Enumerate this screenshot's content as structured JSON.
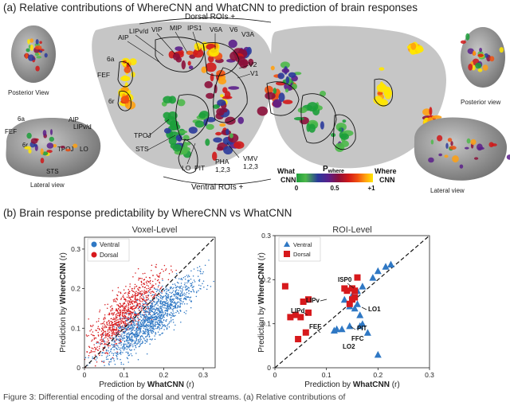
{
  "panel_a": {
    "title": "(a) Relative contributions of WhereCNN and WhatCNN to prediction of brain responses",
    "dorsal_label": "Dorsal ROIs +",
    "ventral_label": "Ventral ROIs +",
    "views": {
      "posterior_left": "Posterior View",
      "posterior_right": "Posterior view",
      "lateral_left": "Lateral view",
      "lateral_right": "Lateral view"
    },
    "roi_labels": [
      "LIPv/d",
      "VIP",
      "MIP",
      "IPS1",
      "V6A",
      "V6",
      "V3A",
      "AIP",
      "V2",
      "V1",
      "6a",
      "FEF",
      "6r",
      "TPOJ",
      "STS",
      "LO",
      "PIT",
      "PHA",
      "1,2,3",
      "VMV",
      "1,2,3"
    ],
    "lateral_labels": [
      "6a",
      "AIP",
      "LIPv/d",
      "FEF",
      "6r",
      "TPOJ",
      "LO",
      "STS"
    ],
    "colorbar": {
      "left_label": "What\nCNN",
      "right_label": "Where\nCNN",
      "title": "P",
      "subscript": "where",
      "ticks": [
        "0",
        "0.5",
        "+1"
      ],
      "colors": [
        "#1c9e3a",
        "#4db84a",
        "#2a3a9a",
        "#5a1e8a",
        "#8b0f3a",
        "#d01818",
        "#f05010",
        "#ffa010",
        "#ffe600"
      ]
    }
  },
  "panel_b": {
    "title": "(b) Brain response predictability by WhereCNN vs WhatCNN",
    "voxel": {
      "title": "Voxel-Level",
      "xlabel_prefix": "Prediction by ",
      "xlabel_bold": "WhatCNN",
      "xlabel_suffix": " (r)",
      "ylabel_prefix": "Prediction by ",
      "ylabel_bold": "WhereCNN",
      "ylabel_suffix": " (r)",
      "legend": [
        "Ventral",
        "Dorsal"
      ]
    },
    "roi": {
      "title": "ROI-Level",
      "xlabel_prefix": "Prediction by ",
      "xlabel_bold": "WhatCNN",
      "xlabel_suffix": " (r)",
      "ylabel_prefix": "Prediction by ",
      "ylabel_bold": "WhereCNN",
      "ylabel_suffix": " (r)",
      "legend": [
        "Ventral",
        "Dorsal"
      ],
      "annotations": [
        "ISP0",
        "LIPv",
        "LIPd",
        "FEF",
        "LO1",
        "PIT",
        "FFC",
        "LO2"
      ]
    }
  },
  "caption": "Figure 3: Differential encoding of the dorsal and ventral streams. (a) Relative contributions of",
  "chart_data": [
    {
      "type": "scatter",
      "title": "Voxel-Level",
      "xlabel": "Prediction by WhatCNN (r)",
      "ylabel": "Prediction by WhereCNN (r)",
      "xlim": [
        0,
        0.33
      ],
      "ylim": [
        0,
        0.33
      ],
      "xticks": [
        "0",
        "0.1",
        "0.2",
        "0.3"
      ],
      "yticks": [
        "0",
        "0.1",
        "0.2",
        "0.3"
      ],
      "legend_position": "top-left",
      "reference_line": "y = x",
      "series": [
        {
          "name": "Ventral",
          "color": "#2f78c4",
          "cloud": {
            "x_mean": 0.165,
            "y_mean": 0.12,
            "x_sd": 0.055,
            "y_sd": 0.05,
            "n": 1400
          }
        },
        {
          "name": "Dorsal",
          "color": "#d7191c",
          "cloud": {
            "x_mean": 0.1,
            "y_mean": 0.135,
            "x_sd": 0.045,
            "y_sd": 0.05,
            "n": 900
          }
        }
      ]
    },
    {
      "type": "scatter",
      "title": "ROI-Level",
      "xlabel": "Prediction by WhatCNN (r)",
      "ylabel": "Prediction by WhereCNN (r)",
      "xlim": [
        0,
        0.3
      ],
      "ylim": [
        0,
        0.3
      ],
      "xticks": [
        "0",
        "0.1",
        "0.2",
        "0.3"
      ],
      "yticks": [
        "0",
        "0.1",
        "0.2",
        "0.3"
      ],
      "legend_position": "top-left",
      "reference_line": "y = x",
      "series": [
        {
          "name": "Ventral",
          "color": "#2f78c4",
          "marker": "triangle",
          "points": [
            [
              0.225,
              0.235
            ],
            [
              0.215,
              0.23
            ],
            [
              0.2,
              0.22
            ],
            [
              0.19,
              0.205
            ],
            [
              0.17,
              0.185
            ],
            [
              0.16,
              0.175
            ],
            [
              0.15,
              0.165
            ],
            [
              0.135,
              0.155
            ],
            [
              0.145,
              0.14
            ],
            [
              0.16,
              0.145
            ],
            [
              0.155,
              0.135
            ],
            [
              0.165,
              0.12
            ],
            [
              0.17,
              0.1
            ],
            [
              0.165,
              0.095
            ],
            [
              0.145,
              0.095
            ],
            [
              0.13,
              0.088
            ],
            [
              0.12,
              0.088
            ],
            [
              0.115,
              0.085
            ],
            [
              0.18,
              0.08
            ],
            [
              0.2,
              0.03
            ]
          ]
        },
        {
          "name": "Dorsal",
          "color": "#d7191c",
          "marker": "square",
          "points": [
            [
              0.02,
              0.185
            ],
            [
              0.03,
              0.115
            ],
            [
              0.04,
              0.12
            ],
            [
              0.05,
              0.115
            ],
            [
              0.055,
              0.15
            ],
            [
              0.065,
              0.155
            ],
            [
              0.065,
              0.125
            ],
            [
              0.06,
              0.08
            ],
            [
              0.045,
              0.065
            ],
            [
              0.135,
              0.18
            ],
            [
              0.15,
              0.18
            ],
            [
              0.16,
              0.205
            ],
            [
              0.155,
              0.175
            ],
            [
              0.14,
              0.175
            ],
            [
              0.145,
              0.145
            ],
            [
              0.155,
              0.16
            ],
            [
              0.15,
              0.155
            ]
          ]
        }
      ]
    }
  ]
}
